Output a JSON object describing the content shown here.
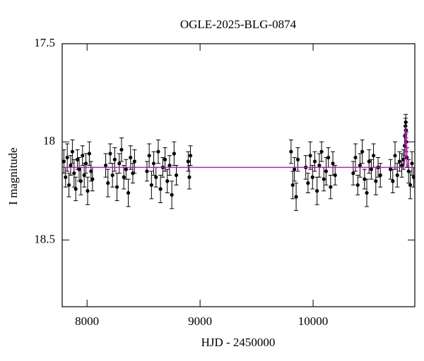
{
  "chart_data": {
    "type": "scatter",
    "title": "OGLE-2025-BLG-0874",
    "xlabel": "HJD - 2450000",
    "ylabel": "I magnitude",
    "xlim": [
      7780,
      10900
    ],
    "ylim": [
      17.5,
      18.84
    ],
    "y_inverted": true,
    "xticks": [
      8000,
      9000,
      10000
    ],
    "yticks": [
      17.5,
      18,
      18.5
    ],
    "series": [
      {
        "color": "#000000",
        "x": [
          7795,
          7810,
          7825,
          7840,
          7855,
          7870,
          7885,
          7900,
          7915,
          7930,
          7945,
          7960,
          7975,
          7990,
          8005,
          8020,
          8035,
          8048,
          8165,
          8185,
          8205,
          8225,
          8245,
          8265,
          8285,
          8305,
          8325,
          8345,
          8365,
          8385,
          8405,
          8420,
          8530,
          8550,
          8570,
          8590,
          8610,
          8630,
          8650,
          8670,
          8690,
          8710,
          8730,
          8750,
          8770,
          8790,
          8895,
          8905,
          8915,
          9805,
          9820,
          9835,
          9850,
          9865,
          9935,
          9955,
          9975,
          9995,
          10015,
          10035,
          10055,
          10075,
          10095,
          10115,
          10135,
          10155,
          10175,
          10195,
          10355,
          10375,
          10395,
          10415,
          10435,
          10455,
          10475,
          10495,
          10515,
          10535,
          10555,
          10575,
          10595,
          10685,
          10705,
          10725,
          10745,
          10765,
          10785,
          10800,
          10810,
          10815,
          10818,
          10820,
          10822,
          10825,
          10830,
          10845,
          10860,
          10875,
          10890
        ],
        "values": [
          18.1,
          18.18,
          18.08,
          18.22,
          18.12,
          18.05,
          18.16,
          18.24,
          18.09,
          18.14,
          18.2,
          18.07,
          18.17,
          18.11,
          18.25,
          18.06,
          18.15,
          18.19,
          18.12,
          18.21,
          18.06,
          18.17,
          18.09,
          18.23,
          18.11,
          18.04,
          18.18,
          18.14,
          18.26,
          18.08,
          18.16,
          18.1,
          18.15,
          18.07,
          18.22,
          18.11,
          18.18,
          18.05,
          18.24,
          18.13,
          18.09,
          18.2,
          18.12,
          18.27,
          18.06,
          18.17,
          18.1,
          18.18,
          18.07,
          18.05,
          18.22,
          18.14,
          18.28,
          18.09,
          18.13,
          18.21,
          18.07,
          18.18,
          18.1,
          18.25,
          18.12,
          18.05,
          18.19,
          18.15,
          18.08,
          18.23,
          18.11,
          18.17,
          18.16,
          18.08,
          18.22,
          18.12,
          18.05,
          18.19,
          18.26,
          18.1,
          18.14,
          18.07,
          18.2,
          18.13,
          18.17,
          18.14,
          18.2,
          18.07,
          18.17,
          18.1,
          18.12,
          18.09,
          18.02,
          17.97,
          17.92,
          17.9,
          17.94,
          18.0,
          18.08,
          18.15,
          18.22,
          18.11,
          18.18
        ],
        "errors": [
          0.06,
          0.05,
          0.07,
          0.06,
          0.05,
          0.06,
          0.07,
          0.06,
          0.05,
          0.06,
          0.07,
          0.05,
          0.06,
          0.05,
          0.07,
          0.06,
          0.05,
          0.06,
          0.06,
          0.07,
          0.05,
          0.06,
          0.06,
          0.07,
          0.05,
          0.06,
          0.06,
          0.05,
          0.07,
          0.06,
          0.05,
          0.06,
          0.05,
          0.06,
          0.07,
          0.06,
          0.05,
          0.06,
          0.07,
          0.05,
          0.06,
          0.06,
          0.05,
          0.07,
          0.06,
          0.05,
          0.05,
          0.06,
          0.05,
          0.06,
          0.07,
          0.06,
          0.07,
          0.06,
          0.06,
          0.05,
          0.07,
          0.06,
          0.05,
          0.07,
          0.06,
          0.05,
          0.06,
          0.07,
          0.05,
          0.06,
          0.06,
          0.05,
          0.06,
          0.07,
          0.05,
          0.06,
          0.06,
          0.05,
          0.07,
          0.06,
          0.05,
          0.06,
          0.07,
          0.05,
          0.06,
          0.05,
          0.06,
          0.07,
          0.06,
          0.05,
          0.06,
          0.05,
          0.05,
          0.05,
          0.04,
          0.04,
          0.04,
          0.05,
          0.05,
          0.06,
          0.07,
          0.06,
          0.05
        ]
      },
      {
        "type": "line",
        "color": "#cc00cc",
        "x": [
          7780,
          10790,
          10805,
          10812,
          10816,
          10820,
          10824,
          10828,
          10835,
          10850,
          10900
        ],
        "values": [
          18.13,
          18.13,
          18.125,
          18.08,
          17.98,
          17.92,
          17.98,
          18.08,
          18.125,
          18.13,
          18.13
        ]
      }
    ]
  }
}
